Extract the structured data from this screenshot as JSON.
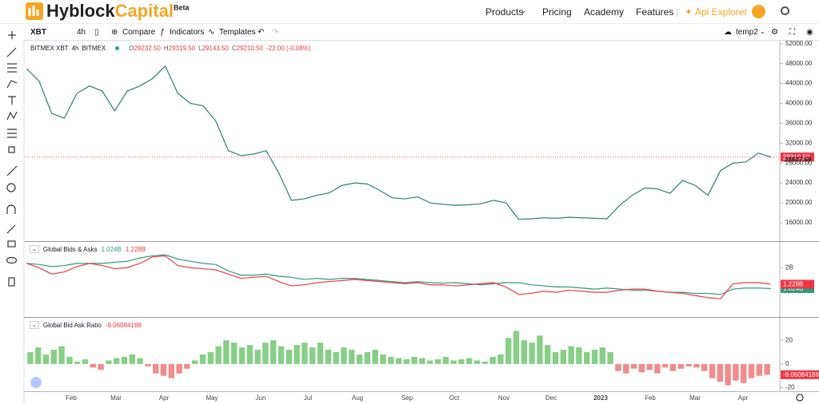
{
  "nav": {
    "logo": [
      "Hyblock",
      "Capital"
    ],
    "badge": "Beta",
    "links": [
      "Products",
      "Pricing",
      "Academy",
      "Features"
    ],
    "api": "Api Explorer"
  },
  "toolbar": {
    "symbol": "XBT",
    "interval": "4h",
    "buttons": [
      "Compare",
      "Indicators",
      "Templates"
    ],
    "layout": "temp2"
  },
  "time_axis": {
    "labels": [
      "Feb",
      "Mar",
      "Apr",
      "May",
      "Jun",
      "Jul",
      "Aug",
      "Sep",
      "Oct",
      "Nov",
      "Dec",
      "2023",
      "Feb",
      "Mar",
      "Apr"
    ]
  },
  "chart_data": [
    {
      "type": "line",
      "title": "BITMEX XBT",
      "interval": "4h",
      "exchange": "BITMEX",
      "ohlc": [
        {
          "key": "O",
          "value": "29232.50"
        },
        {
          "key": "H",
          "value": "29319.50"
        },
        {
          "key": "L",
          "value": "29143.50"
        },
        {
          "key": "C",
          "value": "29210.50"
        }
      ],
      "change": "-22.00 (-0.08%)",
      "color": "#2f7f6d",
      "values": [
        47000,
        44500,
        38000,
        37000,
        42000,
        43500,
        42500,
        38500,
        42500,
        43500,
        45000,
        47500,
        42000,
        40000,
        39500,
        36500,
        30500,
        29500,
        29800,
        30500,
        26000,
        20500,
        20800,
        21500,
        22000,
        23500,
        24000,
        23800,
        22500,
        21000,
        20800,
        21200,
        20000,
        19700,
        19500,
        19600,
        19800,
        20500,
        20000,
        16700,
        16800,
        17000,
        16900,
        17100,
        17000,
        16900,
        16800,
        19500,
        21500,
        23000,
        22800,
        21900,
        24500,
        23500,
        21500,
        26500,
        28000,
        28200,
        30000,
        29210.5
      ],
      "ylim": [
        12300,
        52600
      ],
      "yticks": [
        {
          "value": 16000,
          "label": "16000.00"
        },
        {
          "value": 20000,
          "label": "20000.00"
        },
        {
          "value": 24000,
          "label": "24000.00"
        },
        {
          "value": 28000,
          "label": "28000.00"
        },
        {
          "value": 32000,
          "label": "32000.00"
        },
        {
          "value": 36000,
          "label": "36000.00"
        },
        {
          "value": 40000,
          "label": "40000.00"
        },
        {
          "value": 44000,
          "label": "44000.00"
        },
        {
          "value": 48000,
          "label": "48000.00"
        },
        {
          "value": 52000,
          "label": "52000.00"
        }
      ],
      "current": {
        "value": 29210.5,
        "label": "29210.50",
        "color": "#f23645"
      },
      "reference": 28607.69
    },
    {
      "type": "line",
      "title": "Global Bids & Asks",
      "series": [
        {
          "color": "#2e9a7e",
          "values": [
            2.2,
            2.15,
            2.05,
            2.1,
            2.2,
            2.2,
            2.2,
            2.25,
            2.3,
            2.45,
            2.55,
            2.6,
            2.4,
            2.3,
            2.2,
            2.15,
            1.85,
            1.65,
            1.65,
            1.7,
            1.6,
            1.55,
            1.45,
            1.5,
            1.45,
            1.5,
            1.5,
            1.45,
            1.4,
            1.35,
            1.3,
            1.35,
            1.3,
            1.28,
            1.3,
            1.25,
            1.2,
            1.25,
            1.3,
            1.3,
            1.2,
            1.15,
            1.1,
            1.1,
            1.05,
            1.0,
            1.05,
            1.0,
            0.95,
            0.95,
            0.9,
            0.85,
            0.85,
            0.8,
            0.8,
            0.75,
            1.0,
            1.05,
            1.05,
            1.024
          ],
          "current": {
            "value": 1.024,
            "label": "1.024B"
          }
        },
        {
          "color": "#f23645",
          "values": [
            2.2,
            2.0,
            1.7,
            1.8,
            2.05,
            2.2,
            2.1,
            1.95,
            2.0,
            2.2,
            2.5,
            2.55,
            2.1,
            2.0,
            1.95,
            1.9,
            1.7,
            1.5,
            1.55,
            1.6,
            1.35,
            1.15,
            1.2,
            1.3,
            1.35,
            1.4,
            1.45,
            1.4,
            1.35,
            1.3,
            1.25,
            1.3,
            1.2,
            1.2,
            1.15,
            1.2,
            1.25,
            1.3,
            1.1,
            0.75,
            0.8,
            0.9,
            0.85,
            0.95,
            0.9,
            0.85,
            0.85,
            0.95,
            1.0,
            1.0,
            0.9,
            0.85,
            0.8,
            0.7,
            0.6,
            0.55,
            1.25,
            1.3,
            1.3,
            1.228
          ],
          "current": {
            "value": 1.228,
            "label": "1.228B"
          }
        }
      ],
      "ylim": [
        -0.3,
        3.2
      ],
      "yticks": [
        {
          "value": 2,
          "label": "2B"
        }
      ]
    },
    {
      "type": "bar",
      "title": "Global Bid Ask Ratio",
      "color": "#86cf86",
      "negative_color": "#f28b8b",
      "current_color": "#f23645",
      "values": [
        10,
        14,
        8,
        12,
        15,
        6,
        2,
        4,
        -3,
        -5,
        3,
        5,
        6,
        8,
        5,
        -2,
        -8,
        -10,
        -12,
        -8,
        -4,
        3,
        8,
        10,
        15,
        20,
        18,
        14,
        16,
        12,
        18,
        20,
        15,
        12,
        16,
        18,
        14,
        18,
        12,
        10,
        14,
        12,
        8,
        10,
        12,
        8,
        6,
        5,
        4,
        6,
        5,
        3,
        4,
        6,
        3,
        4,
        5,
        3,
        2,
        6,
        8,
        22,
        28,
        20,
        18,
        24,
        16,
        10,
        12,
        15,
        14,
        10,
        12,
        14,
        10,
        -6,
        -8,
        -4,
        -7,
        -5,
        -8,
        -3,
        -6,
        -4,
        -2,
        -3,
        -6,
        -12,
        -15,
        -18,
        -14,
        -16,
        -12,
        -10,
        -9.06084188
      ],
      "ylim": [
        -23,
        39
      ],
      "yticks": [
        20,
        0,
        -20
      ]
    }
  ]
}
